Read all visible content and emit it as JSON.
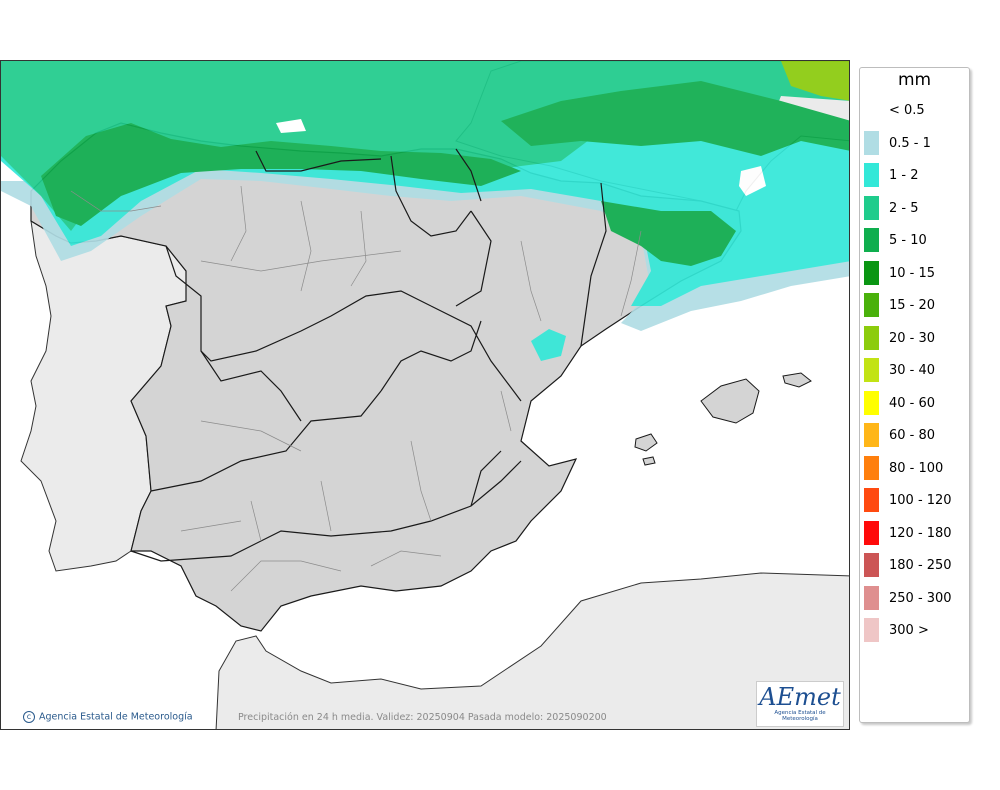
{
  "map": {
    "title": "Precipitación en 24 h media. Validez: 20250904 Pasada modelo: 2025090200",
    "credit": "Agencia Estatal de Meteorología",
    "logo_text": "AEmet",
    "logo_subtext": "Agencia Estatal de Meteorología",
    "colors": {
      "sea": "#ffffff",
      "land_other": "#ebebeb",
      "land_spain": "#d4d4d4",
      "borders": "#1a1a1a",
      "regions": "#8c8c8c"
    }
  },
  "legend": {
    "unit": "mm",
    "items": [
      {
        "label": "< 0.5",
        "color": ""
      },
      {
        "label": "0.5 - 1",
        "color": "#b0dde4"
      },
      {
        "label": "1 - 2",
        "color": "#33e8d8"
      },
      {
        "label": "2 - 5",
        "color": "#1fcc8c"
      },
      {
        "label": "5 - 10",
        "color": "#0fae4e"
      },
      {
        "label": "10 - 15",
        "color": "#0a9613"
      },
      {
        "label": "15 - 20",
        "color": "#4ab10b"
      },
      {
        "label": "20 - 30",
        "color": "#8ccc0d"
      },
      {
        "label": "30 - 40",
        "color": "#c2e315"
      },
      {
        "label": "40 - 60",
        "color": "#ffff00"
      },
      {
        "label": "60 - 80",
        "color": "#ffb618"
      },
      {
        "label": "80 - 100",
        "color": "#ff7f0d"
      },
      {
        "label": "100 - 120",
        "color": "#ff4a10"
      },
      {
        "label": "120 - 180",
        "color": "#ff0a0a"
      },
      {
        "label": "180 - 250",
        "color": "#cc5555"
      },
      {
        "label": "250 - 300",
        "color": "#df8f8f"
      },
      {
        "label": "300 >",
        "color": "#efc6c6"
      }
    ]
  }
}
